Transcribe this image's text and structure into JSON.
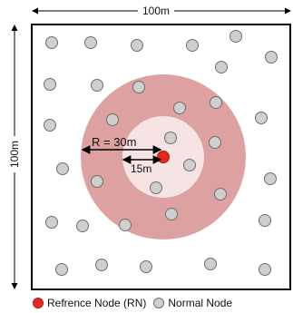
{
  "labels": {
    "width": "100m",
    "height": "100m",
    "radius_outer": "R = 30m",
    "radius_inner": "15m"
  },
  "legend": {
    "reference": "Refrence Node (RN)",
    "normal": "Normal Node"
  },
  "colors": {
    "reference_node": "#e8281e",
    "normal_node": "#cfcfcf",
    "outer_ring": "#d99797",
    "inner_ring": "#f6e3e3"
  },
  "icons": {
    "reference": "red-circle",
    "normal": "gray-circle"
  }
}
